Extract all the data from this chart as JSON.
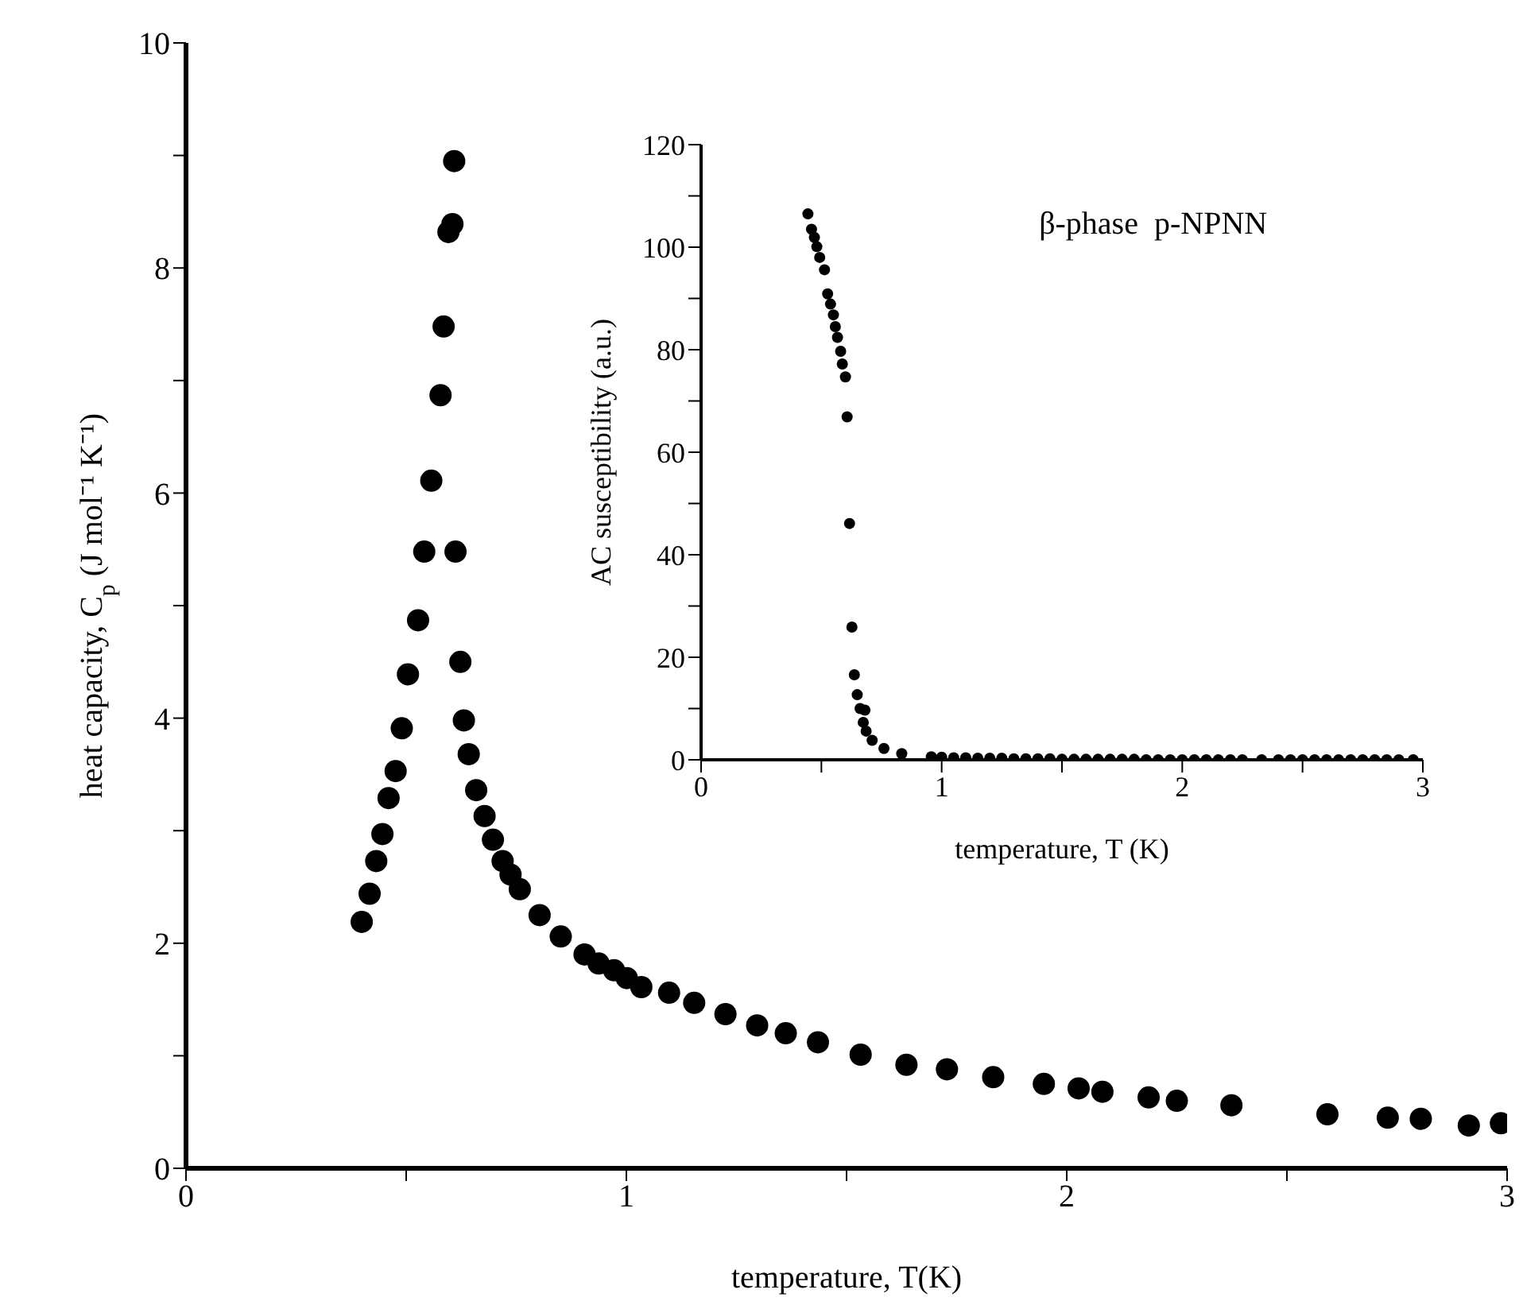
{
  "chart_data": [
    {
      "type": "scatter",
      "xlabel": "temperature, T(K)",
      "ylabel": "heat capacity, C$_{p}$ (J mol⁻¹ K⁻¹)",
      "marker": "circle",
      "grid": false,
      "legend": false,
      "xlim": [
        0,
        3
      ],
      "ylim": [
        0,
        10
      ],
      "xticks": [
        0,
        {
          "value": 0.5,
          "label": null
        },
        1,
        {
          "value": 1.5,
          "label": null
        },
        2,
        {
          "value": 2.5,
          "label": null
        },
        3
      ],
      "yticks": [
        0,
        {
          "value": 1,
          "label": null
        },
        2,
        {
          "value": 3,
          "label": null
        },
        4,
        {
          "value": 5,
          "label": null
        },
        6,
        {
          "value": 7,
          "label": null
        },
        8,
        {
          "value": 9,
          "label": null
        },
        10
      ],
      "series": [
        {
          "color": "#000000",
          "x": [
            0.399,
            0.417,
            0.432,
            0.446,
            0.46,
            0.476,
            0.49,
            0.504,
            0.527,
            0.541,
            0.557,
            0.578,
            0.585,
            0.596,
            0.605,
            0.609,
            0.612,
            0.623,
            0.631,
            0.642,
            0.659,
            0.678,
            0.697,
            0.719,
            0.737,
            0.758,
            0.803,
            0.851,
            0.905,
            0.937,
            0.972,
            1.001,
            1.034,
            1.097,
            1.154,
            1.225,
            1.297,
            1.362,
            1.435,
            1.532,
            1.636,
            1.728,
            1.833,
            1.948,
            2.027,
            2.081,
            2.186,
            2.25,
            2.374,
            2.592,
            2.729,
            2.804,
            2.913,
            2.986
          ],
          "values": [
            2.19,
            2.44,
            2.73,
            2.97,
            3.29,
            3.53,
            3.91,
            4.39,
            4.87,
            5.48,
            6.11,
            6.87,
            7.48,
            8.32,
            8.39,
            8.95,
            5.48,
            4.5,
            3.98,
            3.68,
            3.36,
            3.13,
            2.92,
            2.73,
            2.61,
            2.48,
            2.25,
            2.06,
            1.9,
            1.82,
            1.76,
            1.69,
            1.61,
            1.56,
            1.47,
            1.37,
            1.27,
            1.2,
            1.12,
            1.01,
            0.92,
            0.88,
            0.81,
            0.75,
            0.71,
            0.68,
            0.63,
            0.6,
            0.56,
            0.48,
            0.45,
            0.44,
            0.38,
            0.4
          ]
        }
      ]
    },
    {
      "type": "scatter",
      "xlabel": "temperature, T (K)",
      "ylabel": "AC susceptibility (a.u.)",
      "annotations": [
        "β-phase  p-NPNN"
      ],
      "marker": "circle",
      "grid": false,
      "legend": false,
      "xlim": [
        0,
        3
      ],
      "ylim": [
        0,
        120
      ],
      "xticks": [
        0,
        {
          "value": 0.5,
          "label": null
        },
        1,
        {
          "value": 1.5,
          "label": null
        },
        2,
        {
          "value": 2.5,
          "label": null
        },
        3
      ],
      "yticks": [
        0,
        {
          "value": 10,
          "label": null
        },
        20,
        {
          "value": 30,
          "label": null
        },
        40,
        {
          "value": 50,
          "label": null
        },
        60,
        {
          "value": 70,
          "label": null
        },
        80,
        {
          "value": 90,
          "label": null
        },
        100,
        {
          "value": 110,
          "label": null
        },
        120
      ],
      "series": [
        {
          "color": "#000000",
          "x": [
            0.444,
            0.459,
            0.471,
            0.481,
            0.493,
            0.513,
            0.526,
            0.538,
            0.55,
            0.558,
            0.567,
            0.58,
            0.587,
            0.6,
            0.607,
            0.617,
            0.627,
            0.637,
            0.649,
            0.661,
            0.674,
            0.681,
            0.686,
            0.711,
            0.76,
            0.834,
            0.957,
            1.0,
            1.05,
            1.1,
            1.15,
            1.2,
            1.25,
            1.3,
            1.35,
            1.4,
            1.45,
            1.5,
            1.55,
            1.6,
            1.65,
            1.7,
            1.75,
            1.8,
            1.85,
            1.9,
            1.95,
            2.0,
            2.05,
            2.1,
            2.15,
            2.2,
            2.25,
            2.33,
            2.4,
            2.45,
            2.5,
            2.55,
            2.6,
            2.65,
            2.7,
            2.75,
            2.8,
            2.85,
            2.9,
            2.96
          ],
          "values": [
            106.5,
            103.5,
            101.9,
            100.1,
            98,
            95.6,
            90.9,
            88.9,
            86.8,
            84.5,
            82.4,
            79.7,
            77.2,
            74.7,
            66.9,
            46.1,
            25.9,
            16.6,
            12.7,
            10,
            7.3,
            9.7,
            5.6,
            3.8,
            2.2,
            1.2,
            0.6,
            0.5,
            0.4,
            0.4,
            0.3,
            0.3,
            0.3,
            0.2,
            0.2,
            0.2,
            0.2,
            0.1,
            0.1,
            0.1,
            0.1,
            0.1,
            0.1,
            0.1,
            0,
            0,
            0,
            0,
            0,
            0,
            0,
            0,
            0,
            0,
            0,
            0,
            0,
            0,
            0,
            0,
            0,
            0,
            0,
            0,
            0,
            0
          ]
        }
      ]
    }
  ]
}
